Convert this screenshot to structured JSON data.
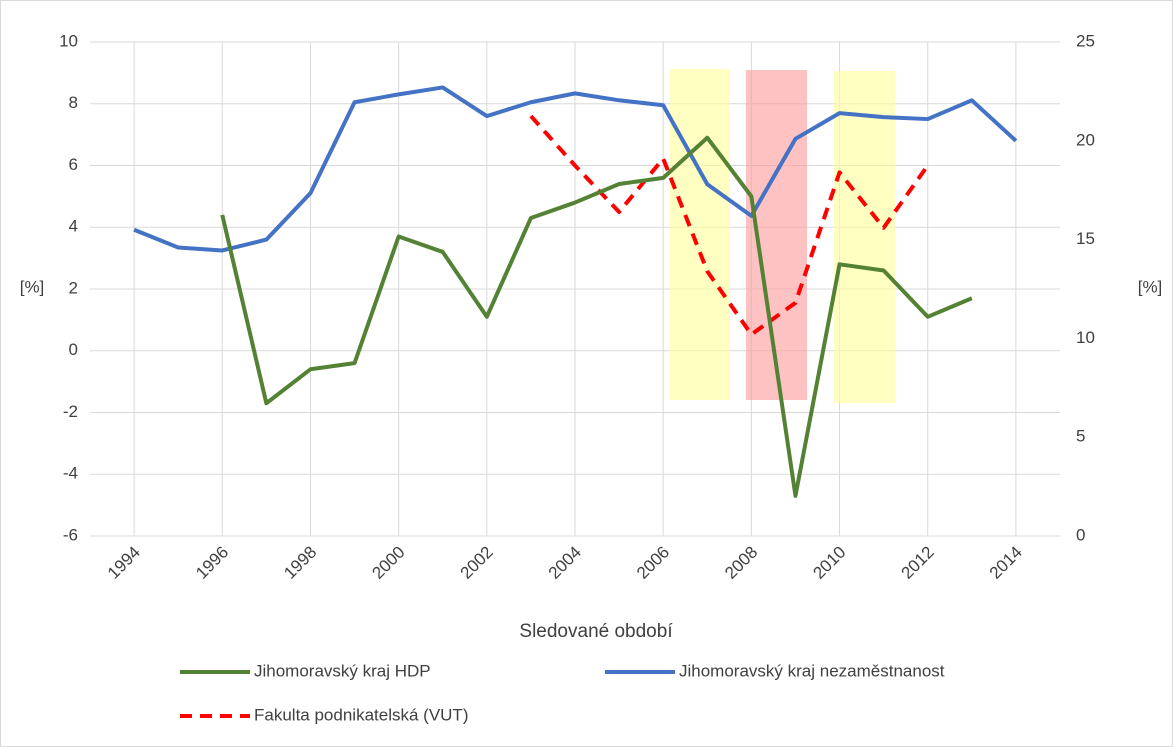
{
  "chart_data": {
    "type": "line",
    "x_label": "Sledované období",
    "y_label": "[%]",
    "y2_label": "[%]",
    "xlim": [
      1993,
      2015
    ],
    "xticks": [
      1994,
      1996,
      1998,
      2000,
      2002,
      2004,
      2006,
      2008,
      2010,
      2012,
      2014
    ],
    "ylim": [
      -6,
      10
    ],
    "yticks": [
      -6,
      -4,
      -2,
      0,
      2,
      4,
      6,
      8,
      10
    ],
    "y2lim": [
      0,
      25
    ],
    "y2ticks": [
      0,
      5,
      10,
      15,
      20,
      25
    ],
    "grid": true,
    "legend": "bottom",
    "series": [
      {
        "name": "Jihomoravský kraj HDP",
        "color": "#548235",
        "style": "solid",
        "x": [
          1996,
          1997,
          1998,
          1999,
          2000,
          2001,
          2002,
          2003,
          2004,
          2005,
          2006,
          2007,
          2008,
          2009,
          2010,
          2011,
          2012,
          2013
        ],
        "values": [
          4.4,
          -1.7,
          -0.6,
          -0.4,
          3.7,
          3.2,
          1.1,
          4.3,
          4.8,
          5.4,
          5.6,
          6.9,
          5.0,
          -4.7,
          2.8,
          2.6,
          1.1,
          1.7
        ]
      },
      {
        "name": "Jihomoravský kraj nezaměstnanost",
        "color": "#4472c4",
        "style": "solid",
        "axis": "y2",
        "x": [
          1994,
          1995,
          1996,
          1997,
          1998,
          1999,
          2000,
          2001,
          2002,
          2003,
          2004,
          2005,
          2006,
          2007,
          2008,
          2009,
          2010,
          2011,
          2012,
          2013,
          2014
        ],
        "values": [
          15.5,
          14.6,
          14.45,
          15.0,
          17.35,
          21.95,
          22.35,
          22.7,
          21.25,
          21.95,
          22.4,
          22.05,
          21.8,
          17.8,
          16.2,
          20.1,
          21.4,
          21.2,
          21.1,
          22.05,
          20.0
        ]
      },
      {
        "name": "Fakulta podnikatelská (VUT)",
        "color": "#ff0000",
        "style": "dashed",
        "axis": "y2",
        "x": [
          2003,
          2004,
          2005,
          2006,
          2007,
          2008,
          2009,
          2010,
          2011,
          2012
        ],
        "values": [
          21.25,
          18.75,
          16.4,
          19.1,
          13.4,
          10.2,
          11.8,
          18.4,
          15.6,
          18.75
        ]
      }
    ]
  }
}
